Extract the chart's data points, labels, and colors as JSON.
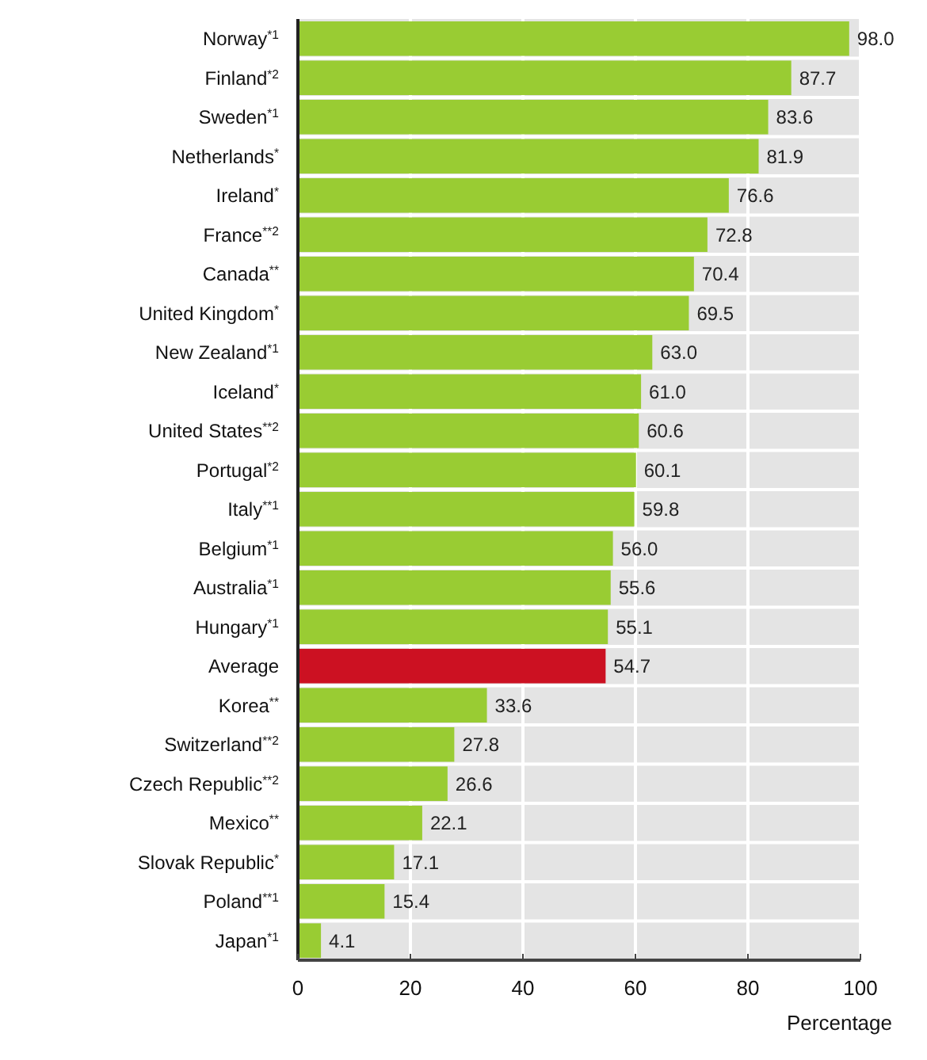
{
  "chart_data": {
    "type": "bar",
    "orientation": "horizontal",
    "xlabel": "Percentage",
    "categories": [
      "Norway$^{*1}$",
      "Finland$^{*2}$",
      "Sweden$^{*1}$",
      "Netherlands$^{*}$",
      "Ireland$^{*}$",
      "France$^{**2}$",
      "Canada$^{**}$",
      "United Kingdom$^{*}$",
      "New Zealand$^{*1}$",
      "Iceland$^{*}$",
      "United States$^{**2}$",
      "Portugal$^{*2}$",
      "Italy$^{**1}$",
      "Belgium$^{*1}$",
      "Australia$^{*1}$",
      "Hungary$^{*1}$",
      "Average",
      "Korea$^{**}$",
      "Switzerland$^{**2}$",
      "Czech Republic$^{**2}$",
      "Mexico$^{**}$",
      "Slovak Republic$^{*}$",
      "Poland$^{**1}$",
      "Japan$^{*1}$"
    ],
    "values": [
      98.0,
      87.7,
      83.6,
      81.9,
      76.6,
      72.8,
      70.4,
      69.5,
      63.0,
      61.0,
      60.6,
      60.1,
      59.8,
      56.0,
      55.6,
      55.1,
      54.7,
      33.6,
      27.8,
      26.6,
      22.1,
      17.1,
      15.4,
      4.1
    ],
    "value_labels": [
      "98.0",
      "87.7",
      "83.6",
      "81.9",
      "76.6",
      "72.8",
      "70.4",
      "69.5",
      "63.0",
      "61.0",
      "60.6",
      "60.1",
      "59.8",
      "56.0",
      "55.6",
      "55.1",
      "54.7",
      "33.6",
      "27.8",
      "26.6",
      "22.1",
      "17.1",
      "15.4",
      "4.1"
    ],
    "colors": [
      "#99cc33",
      "#99cc33",
      "#99cc33",
      "#99cc33",
      "#99cc33",
      "#99cc33",
      "#99cc33",
      "#99cc33",
      "#99cc33",
      "#99cc33",
      "#99cc33",
      "#99cc33",
      "#99cc33",
      "#99cc33",
      "#99cc33",
      "#99cc33",
      "#cc1122",
      "#99cc33",
      "#99cc33",
      "#99cc33",
      "#99cc33",
      "#99cc33",
      "#99cc33",
      "#99cc33"
    ],
    "xlim": [
      0,
      100
    ],
    "xticks": [
      0,
      20,
      40,
      60,
      80,
      100
    ],
    "grid": "x"
  }
}
